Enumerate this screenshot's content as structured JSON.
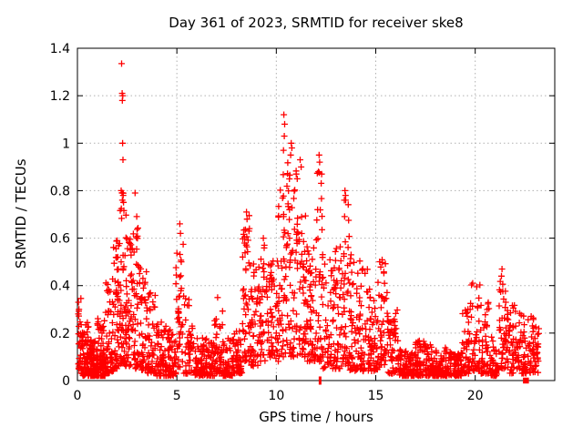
{
  "chart_data": {
    "type": "scatter",
    "title": "Day 361 of 2023, SRMTID for receiver ske8",
    "xlabel": "GPS time / hours",
    "ylabel": "SRMTID / TECUs",
    "xlim": [
      0,
      24
    ],
    "ylim": [
      0,
      1.4
    ],
    "xticks": {
      "values": [
        0,
        5,
        10,
        15,
        20
      ],
      "labels": [
        "0",
        "5",
        "10",
        "15",
        "20"
      ]
    },
    "yticks": {
      "values": [
        0,
        0.2,
        0.4,
        0.6,
        0.8,
        1.0,
        1.2,
        1.4
      ],
      "labels": [
        "0",
        "0.2",
        "0.4",
        "0.6",
        "0.8",
        "1",
        "1.2",
        "1.4"
      ]
    },
    "grid": {
      "show": true,
      "color": "#b0b0b0",
      "style": "dotted"
    },
    "border_color": "#000000",
    "marker": {
      "shape": "plus",
      "color": "#ff0000",
      "size": 7
    },
    "seed": 2023361,
    "density_bins": [
      [
        0.0,
        0.25,
        32,
        0.03,
        0.35,
        1.5
      ],
      [
        0.25,
        0.6,
        50,
        0.02,
        0.25,
        2.0
      ],
      [
        0.6,
        1.0,
        85,
        0.02,
        0.17,
        2.0
      ],
      [
        1.0,
        1.4,
        70,
        0.02,
        0.27,
        2.2
      ],
      [
        1.4,
        1.8,
        55,
        0.03,
        0.45,
        2.0
      ],
      [
        1.8,
        2.1,
        48,
        0.05,
        0.62,
        1.6
      ],
      [
        2.1,
        2.45,
        58,
        0.05,
        0.82,
        1.3
      ],
      [
        2.45,
        2.8,
        48,
        0.06,
        0.62,
        1.5
      ],
      [
        2.8,
        3.1,
        42,
        0.05,
        0.76,
        1.8
      ],
      [
        3.1,
        3.5,
        48,
        0.04,
        0.5,
        1.8
      ],
      [
        3.5,
        4.0,
        55,
        0.03,
        0.38,
        2.0
      ],
      [
        4.0,
        4.5,
        55,
        0.02,
        0.25,
        2.0
      ],
      [
        4.5,
        4.95,
        50,
        0.02,
        0.22,
        2.0
      ],
      [
        4.95,
        5.35,
        42,
        0.05,
        0.58,
        1.7
      ],
      [
        5.35,
        5.8,
        42,
        0.03,
        0.35,
        2.0
      ],
      [
        5.8,
        6.5,
        70,
        0.02,
        0.18,
        2.0
      ],
      [
        6.5,
        6.9,
        45,
        0.02,
        0.16,
        2.0
      ],
      [
        6.9,
        7.3,
        42,
        0.03,
        0.33,
        2.2
      ],
      [
        7.3,
        7.8,
        55,
        0.02,
        0.18,
        2.0
      ],
      [
        7.8,
        8.3,
        55,
        0.03,
        0.22,
        2.0
      ],
      [
        8.3,
        8.65,
        48,
        0.08,
        0.7,
        1.3
      ],
      [
        8.65,
        9.1,
        48,
        0.06,
        0.5,
        1.6
      ],
      [
        9.1,
        9.6,
        48,
        0.08,
        0.57,
        1.4
      ],
      [
        9.6,
        10.1,
        52,
        0.08,
        0.52,
        1.5
      ],
      [
        10.1,
        10.55,
        52,
        0.1,
        0.88,
        1.4
      ],
      [
        10.55,
        11.0,
        52,
        0.1,
        0.92,
        1.4
      ],
      [
        11.0,
        11.5,
        58,
        0.1,
        0.7,
        1.5
      ],
      [
        11.5,
        12.0,
        58,
        0.08,
        0.58,
        1.6
      ],
      [
        12.0,
        12.35,
        42,
        0.08,
        0.9,
        1.4
      ],
      [
        12.35,
        12.9,
        48,
        0.05,
        0.52,
        1.7
      ],
      [
        12.9,
        13.35,
        48,
        0.05,
        0.58,
        1.7
      ],
      [
        13.35,
        13.7,
        42,
        0.06,
        0.78,
        1.4
      ],
      [
        13.7,
        14.2,
        52,
        0.04,
        0.53,
        1.7
      ],
      [
        14.2,
        14.7,
        48,
        0.04,
        0.48,
        1.7
      ],
      [
        14.7,
        15.1,
        42,
        0.04,
        0.38,
        1.8
      ],
      [
        15.1,
        15.6,
        48,
        0.05,
        0.52,
        1.5
      ],
      [
        15.6,
        16.2,
        55,
        0.03,
        0.32,
        2.0
      ],
      [
        16.2,
        17.0,
        85,
        0.02,
        0.13,
        2.0
      ],
      [
        17.0,
        17.8,
        85,
        0.02,
        0.17,
        2.0
      ],
      [
        17.8,
        18.6,
        90,
        0.02,
        0.14,
        2.0
      ],
      [
        18.6,
        19.3,
        75,
        0.02,
        0.12,
        2.0
      ],
      [
        19.3,
        19.7,
        42,
        0.03,
        0.32,
        1.8
      ],
      [
        19.7,
        20.3,
        48,
        0.04,
        0.42,
        1.8
      ],
      [
        20.3,
        20.7,
        42,
        0.03,
        0.33,
        1.8
      ],
      [
        20.7,
        21.2,
        45,
        0.02,
        0.2,
        2.0
      ],
      [
        21.2,
        21.55,
        42,
        0.05,
        0.45,
        1.5
      ],
      [
        21.55,
        22.1,
        50,
        0.03,
        0.32,
        1.8
      ],
      [
        22.1,
        22.7,
        55,
        0.03,
        0.3,
        1.8
      ],
      [
        22.7,
        23.2,
        48,
        0.03,
        0.28,
        1.8
      ]
    ],
    "outlier_points": [
      [
        0.05,
        0.33
      ],
      [
        0.08,
        0.3
      ],
      [
        2.22,
        1.335
      ],
      [
        2.25,
        1.21
      ],
      [
        2.28,
        1.2
      ],
      [
        2.26,
        1.18
      ],
      [
        2.27,
        1.0
      ],
      [
        2.29,
        0.93
      ],
      [
        2.2,
        0.8
      ],
      [
        2.24,
        0.79
      ],
      [
        2.3,
        0.78
      ],
      [
        2.26,
        0.76
      ],
      [
        2.9,
        0.79
      ],
      [
        5.15,
        0.66
      ],
      [
        5.18,
        0.62
      ],
      [
        7.05,
        0.35
      ],
      [
        8.5,
        0.71
      ],
      [
        8.53,
        0.68
      ],
      [
        9.35,
        0.6
      ],
      [
        9.4,
        0.57
      ],
      [
        10.38,
        1.12
      ],
      [
        10.42,
        1.08
      ],
      [
        10.4,
        1.03
      ],
      [
        10.36,
        0.97
      ],
      [
        10.75,
        1.0
      ],
      [
        10.78,
        0.98
      ],
      [
        10.72,
        0.95
      ],
      [
        11.0,
        0.87
      ],
      [
        11.05,
        0.85
      ],
      [
        11.2,
        0.93
      ],
      [
        11.25,
        0.9
      ],
      [
        12.15,
        0.95
      ],
      [
        12.18,
        0.92
      ],
      [
        12.12,
        0.88
      ],
      [
        13.45,
        0.8
      ],
      [
        13.48,
        0.78
      ],
      [
        13.42,
        0.76
      ],
      [
        21.35,
        0.47
      ],
      [
        21.32,
        0.44
      ]
    ],
    "special_markers": [
      {
        "shape": "vline",
        "x": 12.2,
        "y": 0
      },
      {
        "shape": "filled-square",
        "x": 22.55,
        "y": 0
      }
    ]
  }
}
